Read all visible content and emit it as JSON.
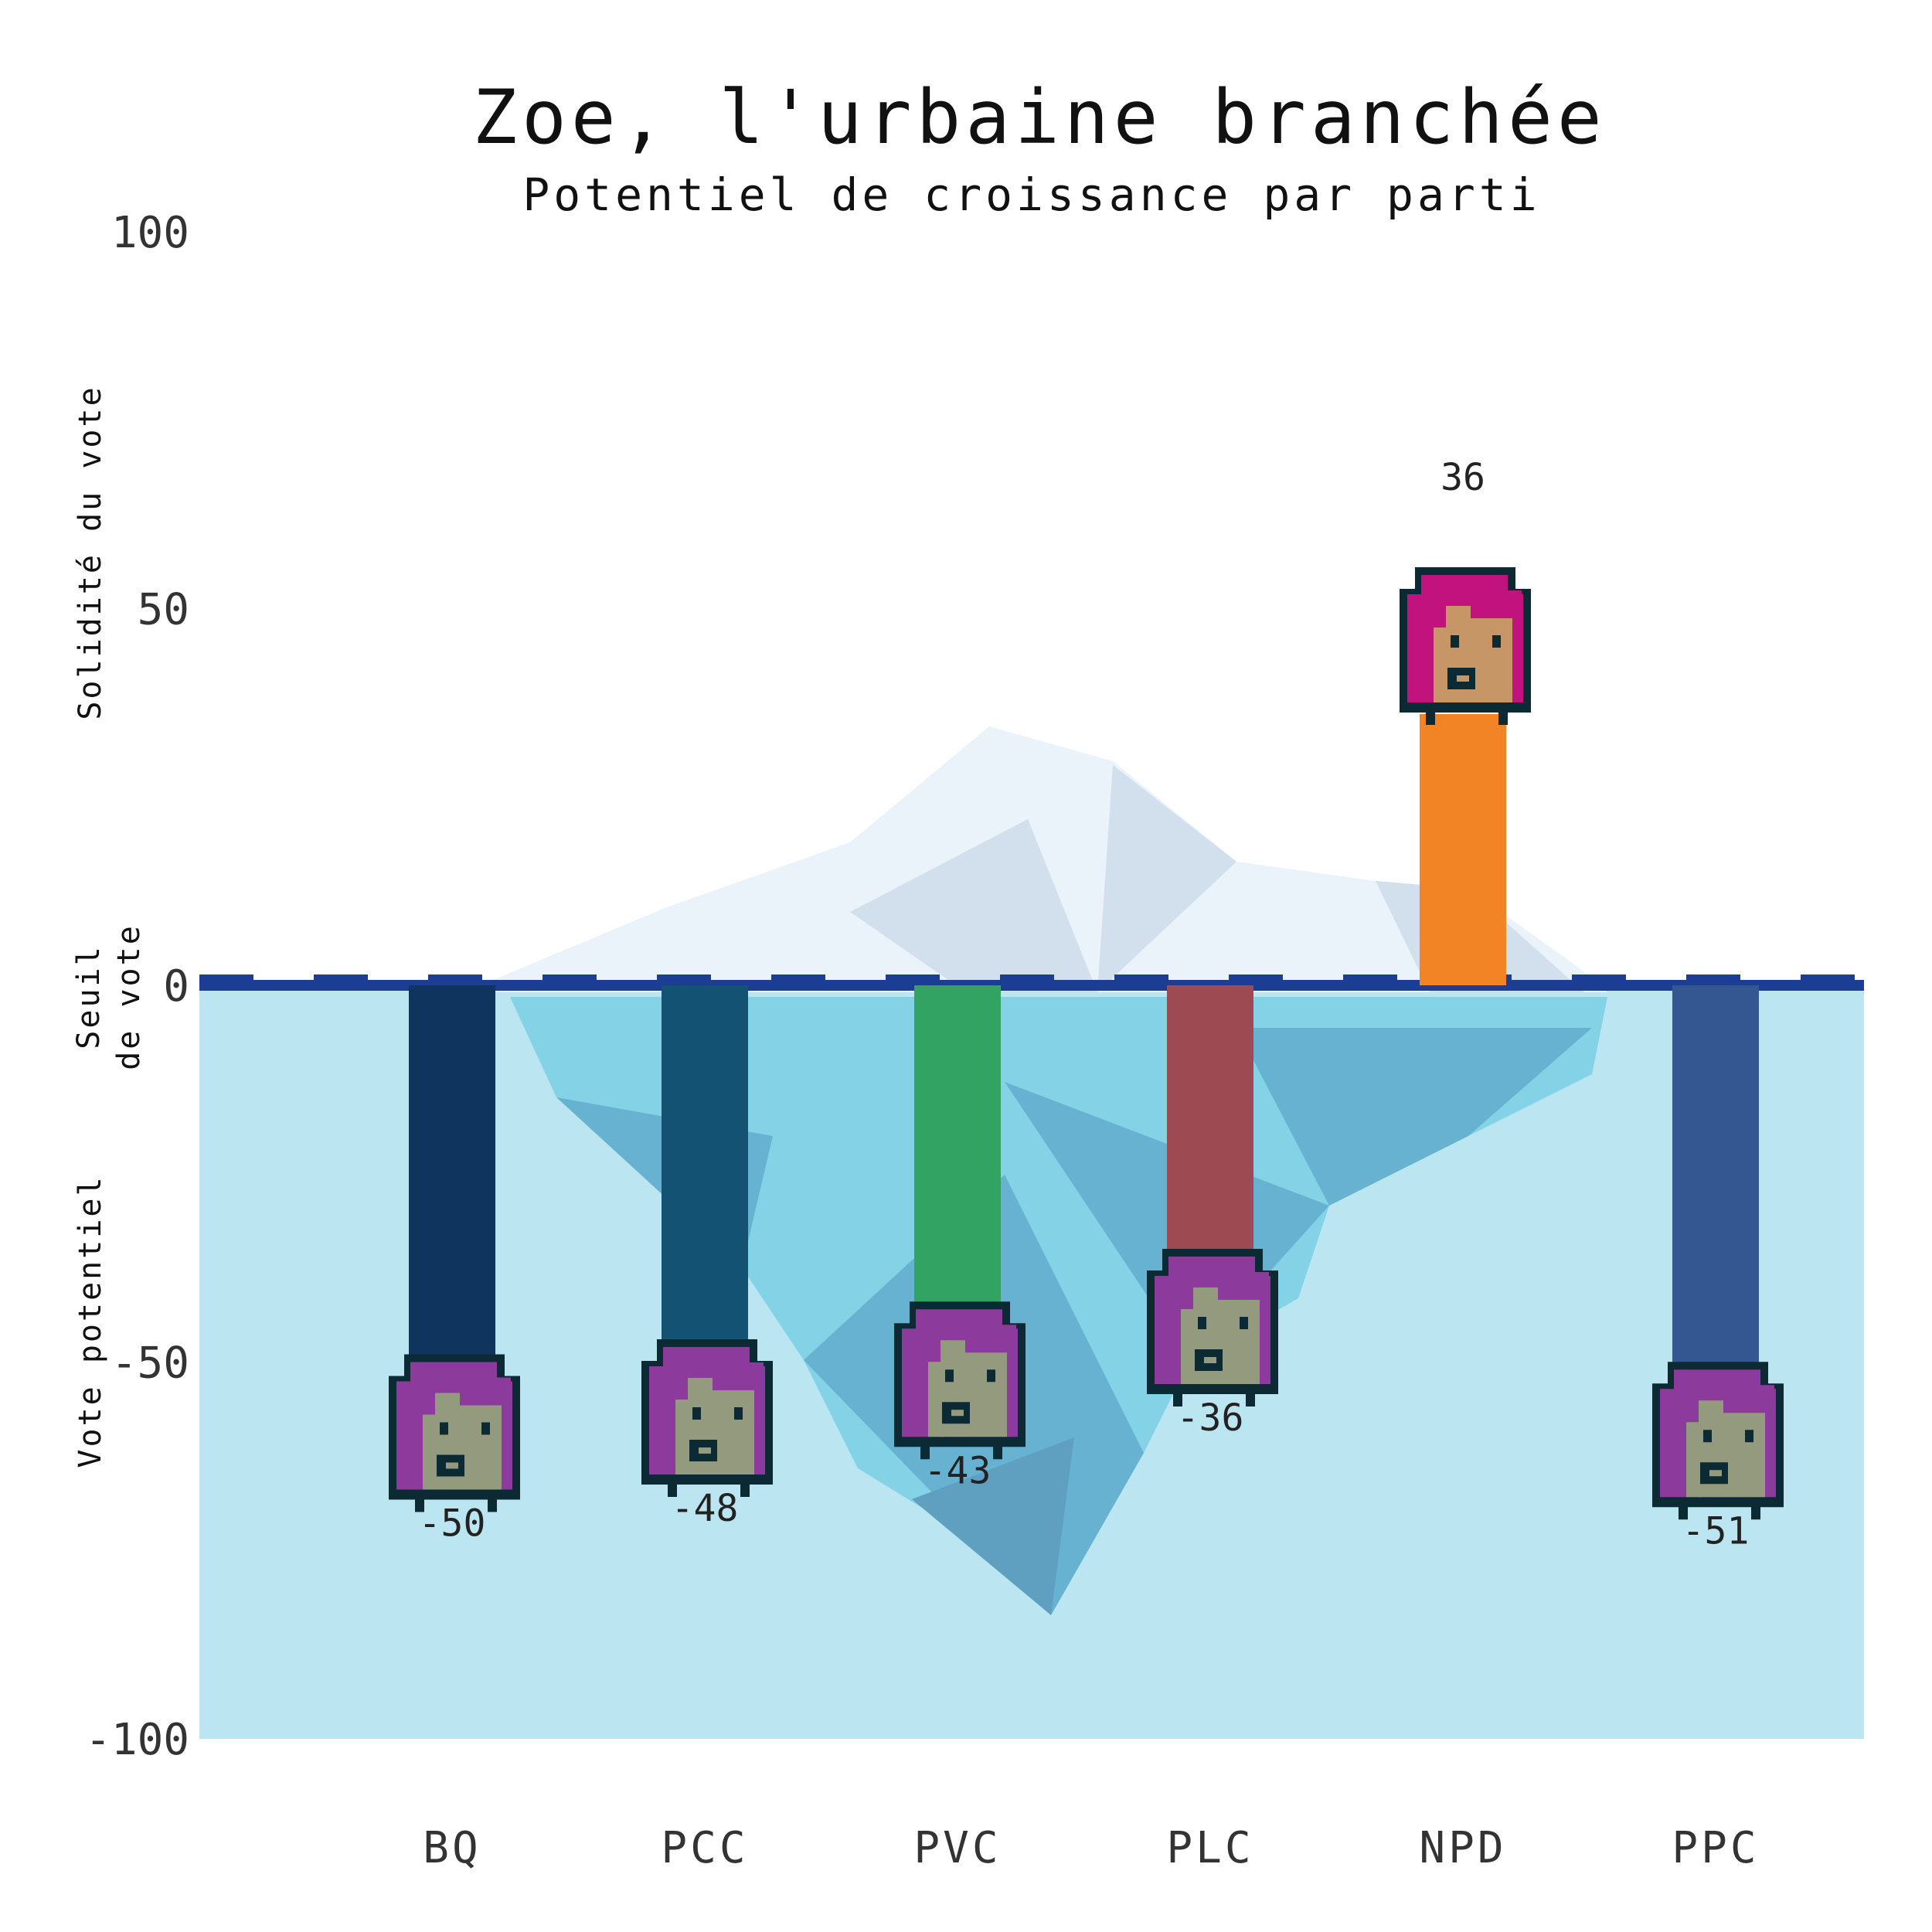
{
  "chart_data": {
    "type": "bar",
    "title": "Zoe, l'urbaine branchée",
    "subtitle": "Potentiel de croissance par parti",
    "ylim": [
      -100,
      100
    ],
    "yticks": [
      100,
      50,
      0,
      -50,
      -100
    ],
    "ylabel_top": "Solidité du vote",
    "ylabel_zero": [
      "Seuil",
      "de vote"
    ],
    "ylabel_bottom": "Vote potentiel",
    "categories": [
      "BQ",
      "PCC",
      "PVC",
      "PLC",
      "NPD",
      "PPC"
    ],
    "values": [
      -50,
      -48,
      -43,
      -36,
      36,
      -51
    ],
    "value_labels": [
      "-50",
      "-48",
      "-43",
      "-36",
      "36",
      "-51"
    ],
    "bar_colors": [
      "#0f355e",
      "#145274",
      "#32a363",
      "#9e4a52",
      "#f28426",
      "#355791"
    ],
    "colors": {
      "water": "#bbe5f0",
      "waterline": "#1b3e94",
      "ice_light": "#eaf3fa",
      "ice_shadow": "#d2dfec",
      "hair_above": "#c2127e",
      "hair_below": "#8c3a9c",
      "skin_above": "#c79666",
      "skin_below": "#949a7e",
      "outline": "#0b2a33"
    }
  }
}
